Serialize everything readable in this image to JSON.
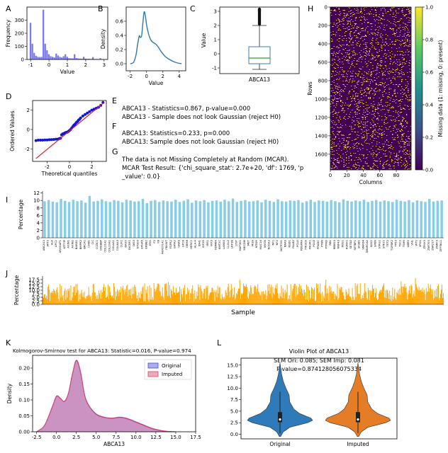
{
  "chart_data": [
    {
      "panel": "A",
      "type": "bar",
      "title": "",
      "xlabel": "Value",
      "ylabel": "Frequency",
      "xlim": [
        -1.2,
        3.2
      ],
      "ylim": [
        0,
        400
      ],
      "xticks": [
        -1,
        0,
        1,
        2,
        3
      ],
      "yticks": [
        0,
        100,
        200,
        300
      ],
      "bins": [
        {
          "x0": -1.05,
          "x1": -0.95,
          "v": 280
        },
        {
          "x0": -0.95,
          "x1": -0.85,
          "v": 120
        },
        {
          "x0": -0.85,
          "x1": -0.75,
          "v": 50
        },
        {
          "x0": -0.75,
          "x1": -0.65,
          "v": 28
        },
        {
          "x0": -0.65,
          "x1": -0.55,
          "v": 20
        },
        {
          "x0": -0.55,
          "x1": -0.45,
          "v": 18
        },
        {
          "x0": -0.45,
          "x1": -0.35,
          "v": 20
        },
        {
          "x0": -0.35,
          "x1": -0.25,
          "v": 380
        },
        {
          "x0": -0.25,
          "x1": -0.15,
          "v": 120
        },
        {
          "x0": -0.15,
          "x1": -0.05,
          "v": 70
        },
        {
          "x0": -0.05,
          "x1": 0.05,
          "v": 40
        },
        {
          "x0": 0.05,
          "x1": 0.15,
          "v": 25
        },
        {
          "x0": 0.15,
          "x1": 0.25,
          "v": 20
        },
        {
          "x0": 0.25,
          "x1": 0.35,
          "v": 15
        },
        {
          "x0": 0.35,
          "x1": 0.45,
          "v": 45
        },
        {
          "x0": 0.45,
          "x1": 0.55,
          "v": 30
        },
        {
          "x0": 0.55,
          "x1": 0.65,
          "v": 20
        },
        {
          "x0": 0.65,
          "x1": 0.75,
          "v": 15
        },
        {
          "x0": 0.75,
          "x1": 0.85,
          "v": 25
        },
        {
          "x0": 0.85,
          "x1": 0.95,
          "v": 40
        },
        {
          "x0": 0.95,
          "x1": 1.05,
          "v": 20
        },
        {
          "x0": 1.05,
          "x1": 1.15,
          "v": 10
        },
        {
          "x0": 1.15,
          "x1": 1.25,
          "v": 8
        },
        {
          "x0": 1.25,
          "x1": 1.35,
          "v": 8
        },
        {
          "x0": 1.35,
          "x1": 1.45,
          "v": 40
        },
        {
          "x0": 1.45,
          "x1": 1.55,
          "v": 10
        },
        {
          "x0": 1.55,
          "x1": 1.65,
          "v": 8
        },
        {
          "x0": 1.65,
          "x1": 1.75,
          "v": 6
        },
        {
          "x0": 1.75,
          "x1": 1.85,
          "v": 6
        },
        {
          "x0": 1.85,
          "x1": 1.95,
          "v": 20
        },
        {
          "x0": 1.95,
          "x1": 2.05,
          "v": 6
        },
        {
          "x0": 2.05,
          "x1": 2.15,
          "v": 5
        },
        {
          "x0": 2.15,
          "x1": 2.25,
          "v": 5
        },
        {
          "x0": 2.25,
          "x1": 2.35,
          "v": 4
        },
        {
          "x0": 2.35,
          "x1": 2.45,
          "v": 18
        },
        {
          "x0": 2.45,
          "x1": 2.55,
          "v": 4
        },
        {
          "x0": 2.55,
          "x1": 2.65,
          "v": 4
        },
        {
          "x0": 2.65,
          "x1": 2.75,
          "v": 3
        },
        {
          "x0": 2.75,
          "x1": 2.85,
          "v": 10
        },
        {
          "x0": 2.85,
          "x1": 2.95,
          "v": 3
        }
      ],
      "color": "#7b7bef"
    },
    {
      "panel": "B",
      "type": "line",
      "xlabel": "Value",
      "ylabel": "Density",
      "xlim": [
        -2.5,
        4.8
      ],
      "ylim": [
        -0.1,
        0.8
      ],
      "xticks": [
        -2,
        0,
        2,
        4
      ],
      "yticks": [
        0.0,
        0.2,
        0.4,
        0.6
      ],
      "x": [
        -2.0,
        -1.6,
        -1.3,
        -1.1,
        -0.9,
        -0.75,
        -0.6,
        -0.45,
        -0.3,
        -0.15,
        0.0,
        0.2,
        0.5,
        0.8,
        1.1,
        1.4,
        1.8,
        2.3,
        2.8,
        3.3,
        3.8,
        4.3
      ],
      "y": [
        0.0,
        0.02,
        0.12,
        0.27,
        0.39,
        0.37,
        0.4,
        0.58,
        0.73,
        0.68,
        0.55,
        0.44,
        0.34,
        0.3,
        0.28,
        0.24,
        0.17,
        0.1,
        0.06,
        0.03,
        0.01,
        0.0
      ],
      "color": "#2b7bb0"
    },
    {
      "panel": "C",
      "type": "box",
      "category": "ABCA13",
      "ylabel": "Value",
      "ylim": [
        -1.4,
        3.3
      ],
      "yticks": [
        -1,
        0,
        1,
        2,
        3
      ],
      "whisker_low": -1.1,
      "q1": -0.7,
      "median": -0.3,
      "q3": 0.5,
      "whisker_high": 2.0,
      "fliers": [
        2.1,
        2.2,
        2.3,
        2.4,
        2.5,
        2.6,
        2.7,
        2.8,
        2.9,
        3.0,
        3.05,
        3.1,
        3.15
      ],
      "box_color": "#3b7fb5",
      "median_color": "#2ca02c"
    },
    {
      "panel": "D",
      "type": "scatter",
      "xlabel": "Theoretical quantiles",
      "ylabel": "Ordered Values",
      "xlim": [
        -3.3,
        3.3
      ],
      "ylim": [
        -3.3,
        3.0
      ],
      "xticks": [
        -2,
        0,
        2
      ],
      "yticks": [
        -2,
        0,
        2
      ],
      "x": [
        -3.0,
        -2.8,
        -2.6,
        -2.4,
        -2.2,
        -2.0,
        -1.8,
        -1.6,
        -1.4,
        -1.2,
        -1.0,
        -0.9,
        -0.8,
        -0.7,
        -0.6,
        -0.5,
        -0.4,
        -0.3,
        -0.2,
        -0.1,
        0.0,
        0.1,
        0.2,
        0.3,
        0.4,
        0.5,
        0.6,
        0.7,
        0.8,
        0.9,
        1.0,
        1.2,
        1.4,
        1.6,
        1.8,
        2.0,
        2.2,
        2.4,
        2.6,
        2.8,
        3.0
      ],
      "y": [
        -1.15,
        -1.1,
        -1.1,
        -1.1,
        -1.08,
        -1.08,
        -1.06,
        -1.05,
        -1.03,
        -1.0,
        -0.98,
        -0.95,
        -0.9,
        -0.55,
        -0.45,
        -0.42,
        -0.35,
        -0.3,
        -0.28,
        -0.2,
        -0.1,
        0.0,
        0.15,
        0.3,
        0.45,
        0.55,
        0.7,
        0.8,
        0.95,
        1.05,
        1.2,
        1.4,
        1.55,
        1.7,
        1.85,
        2.0,
        2.1,
        2.2,
        2.3,
        2.5,
        2.8
      ],
      "fit_line": {
        "x": [
          -3.0,
          3.0
        ],
        "y": [
          -3.0,
          2.7
        ]
      },
      "point_color": "#1515d8",
      "line_color": "#d62020"
    },
    {
      "panel": "H",
      "type": "heatmap",
      "xlabel": "Columns",
      "ylabel": "Rows",
      "xticks": [
        0,
        20,
        40,
        60,
        80
      ],
      "yticks": [
        0,
        200,
        400,
        600,
        800,
        1000,
        1200,
        1400,
        1600
      ],
      "n_rows": 1770,
      "n_cols": 98,
      "missing_fraction": 0.1,
      "colorbar_label": "Missing data (1: missing, 0: present)",
      "colorbar_ticks": [
        "0.0",
        "0.2",
        "0.4",
        "0.6",
        "0.8",
        "1.0"
      ],
      "colors": [
        "#440154",
        "#3b528b",
        "#21918c",
        "#5ec962",
        "#fde725"
      ]
    },
    {
      "panel": "I",
      "type": "bar",
      "ylabel": "Percentage",
      "ylim": [
        0,
        12.5
      ],
      "yticks": [
        0,
        2,
        4,
        6,
        8,
        10,
        12
      ],
      "categories": [
        "ABCA13",
        "AKT3",
        "ALK",
        "APC2",
        "ARHGAP1",
        "ATF7IP",
        "AXIN1",
        "AXIN2",
        "BARD1",
        "BMPR2",
        "BRCA1",
        "CHD1",
        "CIC",
        "CCDC1",
        "CREBBP",
        "COL11A1",
        "COL13A1",
        "COL4A1",
        "COL6A3",
        "CUX1",
        "DAXX",
        "DICER1",
        "DIS3",
        "EP300",
        "EPHA5",
        "ERBB2",
        "ERG",
        "F2",
        "F8",
        "FAM171A1",
        "FBXW7",
        "FGFR2",
        "GATA3",
        "GNAS",
        "GPC6",
        "GRM8",
        "HERC2",
        "HLA-A",
        "IDH1",
        "IGF2R",
        "IRS1",
        "IRX3",
        "KDM6A",
        "KMT2C",
        "LAMA5",
        "LLGL2",
        "LRP1B",
        "LYST",
        "MAP3K1",
        "MECOM",
        "MET",
        "MGA",
        "MTOR",
        "MUC16",
        "MYCN",
        "NCOA3",
        "NF1",
        "NF2",
        "NOTCH1",
        "NRAS",
        "NSD1",
        "PALB2",
        "PCLO",
        "PDGFRA",
        "PIK3CA",
        "PIK3R1",
        "POLE",
        "PRKDC",
        "PTEN",
        "PTPRD",
        "RB1",
        "RBM10",
        "RNF43",
        "ROS1",
        "RUNX1",
        "SETD2",
        "SETBP1",
        "SF3B1",
        "SMAD4",
        "SMARCA4",
        "SOX2",
        "SPEN",
        "STAG2",
        "STK11",
        "TET2",
        "TGFBR2",
        "TP53",
        "TSC2",
        "TSHR",
        "UBR5",
        "VHL",
        "WT1",
        "XPO1",
        "ZFHX3",
        "ZNF703",
        "ZNF217",
        "ZNRF3",
        "ZFP36L1"
      ],
      "values": [
        9.8,
        10.1,
        9.7,
        9.5,
        10.4,
        9.9,
        9.6,
        10.2,
        9.8,
        10.0,
        9.4,
        11.2,
        9.7,
        9.9,
        10.3,
        9.8,
        9.6,
        10.1,
        9.9,
        9.5,
        10.2,
        10.0,
        9.7,
        9.8,
        10.4,
        9.3,
        9.9,
        10.1,
        9.6,
        10.0,
        9.8,
        9.7,
        10.2,
        9.6,
        9.9,
        10.3,
        9.4,
        10.0,
        9.8,
        10.1,
        9.5,
        9.9,
        10.0,
        9.7,
        10.2,
        9.8,
        10.5,
        9.6,
        9.9,
        10.1,
        9.7,
        9.8,
        10.0,
        9.5,
        10.2,
        9.9,
        9.6,
        10.3,
        9.8,
        9.7,
        10.0,
        9.9,
        10.1,
        9.4,
        9.8,
        10.2,
        9.6,
        10.0,
        9.9,
        9.7,
        10.1,
        9.8,
        9.5,
        10.3,
        9.9,
        9.7,
        10.0,
        9.8,
        10.2,
        9.6,
        9.9,
        10.1,
        9.7,
        10.0,
        9.8,
        9.6,
        10.2,
        9.9,
        9.7,
        10.1,
        9.5,
        10.0,
        9.8,
        9.6,
        10.4,
        9.7,
        9.9,
        10.0
      ],
      "color": "#87cde6"
    },
    {
      "panel": "J",
      "type": "bar",
      "xlabel": "Sample",
      "ylabel": "Percentage",
      "ylim": [
        0,
        20
      ],
      "yticks": [
        0.0,
        2.5,
        5.0,
        7.5,
        10.0,
        12.5,
        15.0,
        17.5
      ],
      "n_samples": 1770,
      "mean_value": 10.0,
      "color": "#ffa500"
    },
    {
      "panel": "K",
      "type": "area",
      "title": "Kolmogorov-Smirnov test for ABCA13: Statistic=0.016, P-value=0.974",
      "xlabel": "ABCA13",
      "ylabel": "Density",
      "xlim": [
        -3.0,
        17.5
      ],
      "ylim": [
        0,
        0.24
      ],
      "xticks": [
        -2.5,
        0.0,
        2.5,
        5.0,
        7.5,
        10.0,
        12.5,
        15.0,
        17.5
      ],
      "yticks": [
        0.0,
        0.05,
        0.1,
        0.15,
        0.2
      ],
      "series": [
        {
          "name": "Original",
          "color": "#4a4ad8",
          "x": [
            -2.5,
            -1.5,
            -0.5,
            0.0,
            0.5,
            1.0,
            1.5,
            2.0,
            2.5,
            3.0,
            3.5,
            4.0,
            5.0,
            6.0,
            7.0,
            8.0,
            9.0,
            10.0,
            11.0,
            12.0,
            13.0,
            14.0,
            15.0
          ],
          "y": [
            0.0,
            0.02,
            0.08,
            0.112,
            0.105,
            0.095,
            0.12,
            0.18,
            0.223,
            0.19,
            0.12,
            0.085,
            0.055,
            0.045,
            0.042,
            0.045,
            0.04,
            0.03,
            0.02,
            0.01,
            0.004,
            0.001,
            0.0
          ]
        },
        {
          "name": "Imputed",
          "color": "#e0406a",
          "x": [
            -2.5,
            -1.5,
            -0.5,
            0.0,
            0.5,
            1.0,
            1.5,
            2.0,
            2.5,
            3.0,
            3.5,
            4.0,
            5.0,
            6.0,
            7.0,
            8.0,
            9.0,
            10.0,
            11.0,
            12.0,
            13.0,
            14.0,
            15.0
          ],
          "y": [
            0.0,
            0.02,
            0.079,
            0.111,
            0.104,
            0.096,
            0.121,
            0.181,
            0.225,
            0.192,
            0.121,
            0.086,
            0.056,
            0.046,
            0.043,
            0.046,
            0.041,
            0.031,
            0.021,
            0.011,
            0.005,
            0.001,
            0.0
          ]
        }
      ],
      "legend": "top-right"
    },
    {
      "panel": "L",
      "type": "violin",
      "title": "Violin Plot of ABCA13",
      "annotation_sem": "SEM Ori: 0.085; SEM Imp: 0.081",
      "annotation_p": "P-value=0.874128056075334",
      "ylim": [
        -1.0,
        16.5
      ],
      "yticks": [
        0.0,
        2.5,
        5.0,
        7.5,
        10.0,
        12.5,
        15.0
      ],
      "categories": [
        "Original",
        "Imputed"
      ],
      "colors": [
        "#2f7ab8",
        "#e57d26"
      ],
      "profile_y": [
        -0.5,
        0.5,
        1.5,
        2.5,
        3.0,
        3.5,
        4.5,
        5.5,
        7.0,
        8.5,
        10.0,
        11.5,
        13.0,
        14.5,
        15.5
      ],
      "profile_width": [
        0.02,
        0.1,
        0.3,
        0.85,
        1.0,
        0.95,
        0.6,
        0.42,
        0.3,
        0.28,
        0.18,
        0.1,
        0.05,
        0.02,
        0.0
      ],
      "box": {
        "q1": 2.6,
        "median": 3.2,
        "q3": 4.8,
        "low": 0.2,
        "high": 9.2
      }
    }
  ],
  "texts": {
    "label_E": "E",
    "e_line1": "ABCA13 - Statistics=0.867, p-value=0.000",
    "e_line2": "ABCA13 - Sample does not look Gaussian (reject H0)",
    "label_F": "F",
    "f_line1": "ABCA13: Statistics=0.233, p=0.000",
    "f_line2": "ABCA13: Sample does not look Gaussian (reject H0)",
    "label_G": "G",
    "g_line1": "The data is not Missing Completely at Random (MCAR).",
    "g_line2": "MCAR Test Result: {'chi_square_stat': 2.7e+20, 'df': 1769, 'p",
    "g_line3": "_value': 0.0}"
  },
  "panel_labels": {
    "A": "A",
    "B": "B",
    "C": "C",
    "D": "D",
    "H": "H",
    "I": "I",
    "J": "J",
    "K": "K",
    "L": "L"
  }
}
